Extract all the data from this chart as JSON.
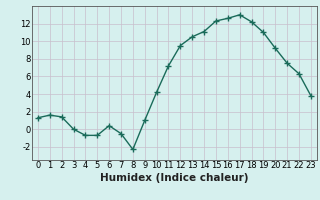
{
  "x": [
    0,
    1,
    2,
    3,
    4,
    5,
    6,
    7,
    8,
    9,
    10,
    11,
    12,
    13,
    14,
    15,
    16,
    17,
    18,
    19,
    20,
    21,
    22,
    23
  ],
  "y": [
    1.3,
    1.6,
    1.4,
    0.0,
    -0.7,
    -0.7,
    0.4,
    -0.5,
    -2.3,
    1.0,
    4.2,
    7.2,
    9.5,
    10.5,
    11.1,
    12.3,
    12.6,
    13.0,
    12.2,
    11.0,
    9.2,
    7.5,
    6.3,
    3.8
  ],
  "line_color": "#1a6b5a",
  "marker": "+",
  "marker_size": 4,
  "marker_linewidth": 1.0,
  "line_width": 1.0,
  "bg_color": "#d6f0ee",
  "grid_color": "#c8bfcc",
  "xlabel": "Humidex (Indice chaleur)",
  "xlim": [
    -0.5,
    23.5
  ],
  "ylim": [
    -3.5,
    14.0
  ],
  "yticks": [
    -2,
    0,
    2,
    4,
    6,
    8,
    10,
    12
  ],
  "xticks": [
    0,
    1,
    2,
    3,
    4,
    5,
    6,
    7,
    8,
    9,
    10,
    11,
    12,
    13,
    14,
    15,
    16,
    17,
    18,
    19,
    20,
    21,
    22,
    23
  ],
  "tick_fontsize": 6.0,
  "xlabel_fontsize": 7.5,
  "spine_color": "#555555"
}
